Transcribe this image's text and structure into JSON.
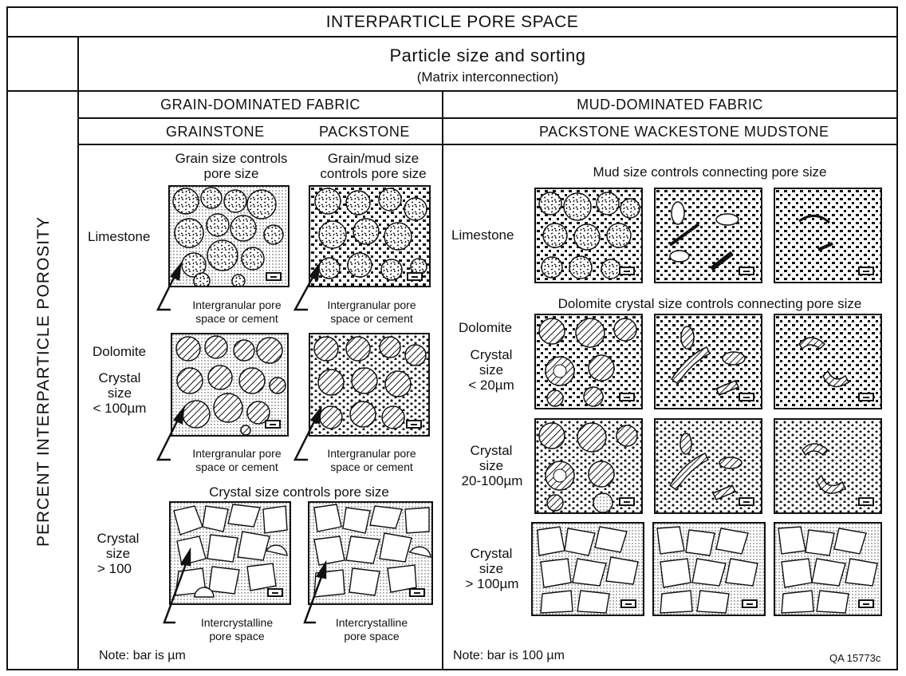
{
  "title": "INTERPARTICLE PORE SPACE",
  "subtitle": "Particle size and sorting",
  "subtitle_note": "(Matrix  interconnection)",
  "side_label": "PERCENT  INTERPARTICLE  POROSITY",
  "grain": {
    "heading": "GRAIN-DOMINATED  FABRIC",
    "col1": "GRAINSTONE",
    "col2": "PACKSTONE",
    "cap1_l1": "Grain size controls",
    "cap1_l2": "pore size",
    "cap2_l1": "Grain/mud size",
    "cap2_l2": "controls pore size",
    "limestone": "Limestone",
    "dolomite": "Dolomite",
    "crystal": "Crystal",
    "size": "size",
    "lt100": "< 100µm",
    "gt100": "> 100",
    "pore_l1": "Intergranular pore",
    "pore_l2": "space or cement",
    "crystal_caption": "Crystal size controls pore size",
    "inter_l1": "Intercrystalline",
    "inter_l2": "pore space",
    "note": "Note:  bar is µm"
  },
  "mud": {
    "heading": "MUD-DOMINATED  FABRIC",
    "cols": "PACKSTONE  WACKESTONE  MUDSTONE",
    "mud_caption": "Mud size controls connecting pore size",
    "dol_caption": "Dolomite crystal size controls connecting pore size",
    "limestone": "Limestone",
    "dolomite": "Dolomite",
    "crystal": "Crystal",
    "size": "size",
    "lt20": "< 20µm",
    "r20_100": "20-100µm",
    "gt100": "> 100µm",
    "note": "Note:  bar is 100 µm",
    "code": "QA 15773c"
  }
}
